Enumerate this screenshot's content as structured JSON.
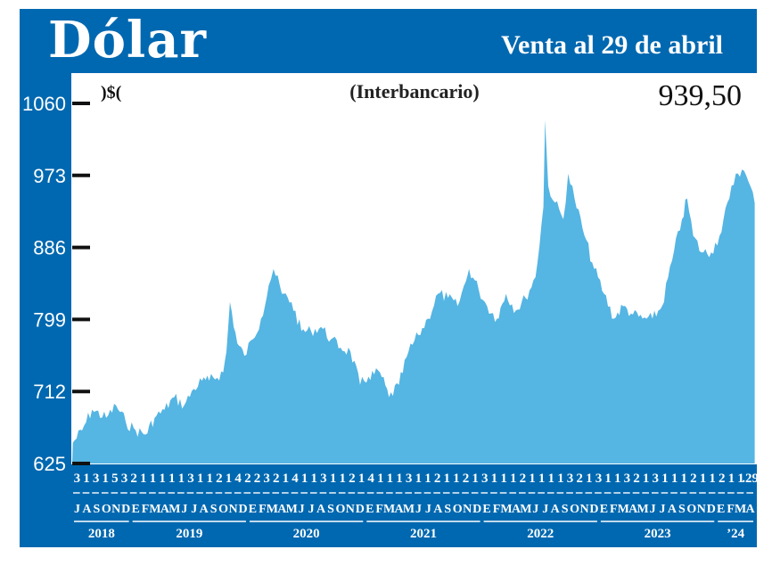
{
  "header": {
    "title": "Dólar",
    "subtitle": "Venta al 29 de abril"
  },
  "chart_data": {
    "type": "area",
    "title": "Dólar",
    "subtitle": "(Interbancario)",
    "unit_label": ")$(",
    "latest_value_label": "939,50",
    "ylim": [
      625,
      1060
    ],
    "yticks": [
      625,
      712,
      799,
      886,
      973,
      1060
    ],
    "ytick_labels": [
      "625",
      "712",
      "799",
      "886",
      "973",
      "1060"
    ],
    "grid": false,
    "fill_color": "#55b5e3",
    "frame_color": "#0068b0",
    "x": [
      "2018-07-03",
      "2018-08-01",
      "2018-09-01",
      "2018-10-15",
      "2018-11-15",
      "2018-12-15",
      "2019-01-15",
      "2019-02-15",
      "2019-03-15",
      "2019-04-15",
      "2019-05-15",
      "2019-06-15",
      "2019-07-15",
      "2019-08-10",
      "2019-09-01",
      "2019-10-15",
      "2019-10-25",
      "2019-11-05",
      "2019-11-28",
      "2019-12-20",
      "2020-01-15",
      "2020-02-10",
      "2020-03-05",
      "2020-03-20",
      "2020-04-15",
      "2020-05-15",
      "2020-06-15",
      "2020-07-15",
      "2020-08-15",
      "2020-09-15",
      "2020-10-15",
      "2020-11-15",
      "2020-12-15",
      "2021-01-10",
      "2021-02-15",
      "2021-03-15",
      "2021-04-15",
      "2021-05-15",
      "2021-06-15",
      "2021-07-15",
      "2021-08-15",
      "2021-09-15",
      "2021-10-15",
      "2021-11-10",
      "2021-11-20",
      "2021-12-20",
      "2022-01-15",
      "2022-02-15",
      "2022-03-15",
      "2022-04-15",
      "2022-05-15",
      "2022-06-15",
      "2022-07-10",
      "2022-07-15",
      "2022-07-25",
      "2022-08-15",
      "2022-09-10",
      "2022-09-25",
      "2022-10-15",
      "2022-11-15",
      "2022-12-15",
      "2023-01-15",
      "2023-02-15",
      "2023-03-15",
      "2023-04-15",
      "2023-05-15",
      "2023-06-15",
      "2023-07-15",
      "2023-08-15",
      "2023-09-15",
      "2023-10-01",
      "2023-10-20",
      "2023-11-15",
      "2023-12-15",
      "2024-01-10",
      "2024-02-10",
      "2024-03-01",
      "2024-03-20",
      "2024-04-10",
      "2024-04-29"
    ],
    "values": [
      650,
      665,
      690,
      680,
      695,
      675,
      665,
      660,
      680,
      690,
      705,
      695,
      715,
      725,
      725,
      735,
      760,
      820,
      770,
      755,
      775,
      800,
      840,
      860,
      830,
      820,
      785,
      785,
      790,
      775,
      765,
      760,
      720,
      730,
      735,
      705,
      720,
      760,
      780,
      800,
      830,
      825,
      815,
      845,
      860,
      835,
      815,
      800,
      830,
      810,
      825,
      850,
      935,
      1040,
      960,
      940,
      920,
      975,
      945,
      900,
      860,
      830,
      800,
      815,
      805,
      800,
      800,
      815,
      870,
      920,
      945,
      900,
      880,
      880,
      900,
      945,
      975,
      980,
      965,
      939.5
    ],
    "x_day_labels": [
      "3",
      "1",
      "3",
      "1",
      "5",
      "3",
      "2",
      "1",
      "1",
      "1",
      "1",
      "1",
      "3",
      "1",
      "1",
      "2",
      "1",
      "4",
      "2",
      "2",
      "3",
      "2",
      "1",
      "4",
      "1",
      "1",
      "3",
      "1",
      "1",
      "2",
      "1",
      "4",
      "1",
      "1",
      "1",
      "3",
      "1",
      "1",
      "2",
      "1",
      "1",
      "2",
      "1",
      "3",
      "1",
      "1",
      "1",
      "2",
      "1",
      "1",
      "1",
      "1",
      "3",
      "2",
      "1",
      "3",
      "1",
      "1",
      "3",
      "2",
      "1",
      "3",
      "1",
      "1",
      "1",
      "2",
      "1",
      "1",
      "2",
      "1",
      "1",
      ".29"
    ],
    "x_month_labels": [
      "J",
      "A",
      "S",
      "O",
      "N",
      "D",
      "E",
      "F",
      "M",
      "A",
      "M",
      "J",
      "J",
      "A",
      "S",
      "O",
      "N",
      "D",
      "E",
      "F",
      "M",
      "A",
      "M",
      "J",
      "J",
      "A",
      "S",
      "O",
      "N",
      "D",
      "E",
      "F",
      "M",
      "A",
      "M",
      "J",
      "J",
      "A",
      "S",
      "O",
      "N",
      "D",
      "E",
      "F",
      "M",
      "A",
      "M",
      "J",
      "J",
      "A",
      "S",
      "O",
      "N",
      "D",
      "E",
      "F",
      "M",
      "A",
      "M",
      "J",
      "J",
      "A",
      "S",
      "O",
      "N",
      "D",
      "E",
      "F",
      "M",
      "A"
    ],
    "x_year_labels": [
      "2018",
      "2019",
      "2020",
      "2021",
      "2022",
      "2023",
      "’24"
    ]
  }
}
